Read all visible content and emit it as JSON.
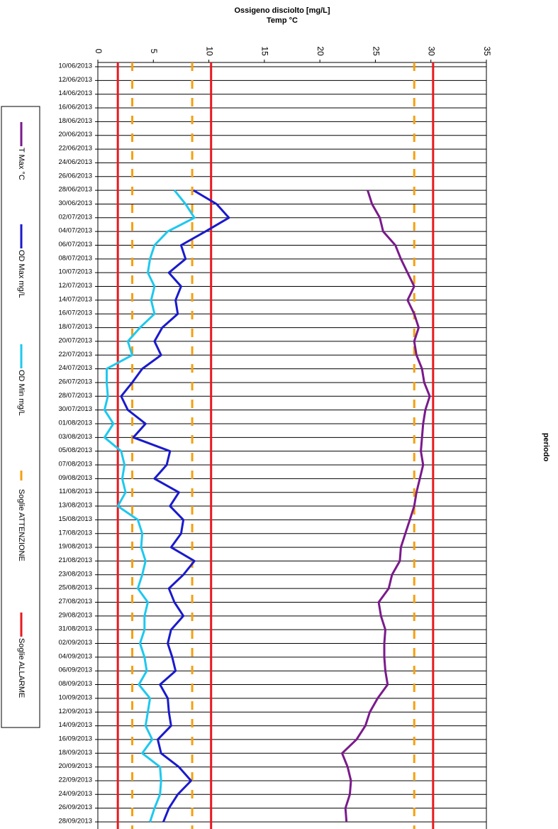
{
  "chart_data": {
    "type": "line",
    "orientation": "horizontal",
    "title": "Ossigeno disciolto [mg/L]",
    "subtitle": "Temp °C",
    "y_label": "periodo",
    "categories": [
      "10/06/2013",
      "12/06/2013",
      "14/06/2013",
      "16/06/2013",
      "18/06/2013",
      "20/06/2013",
      "22/06/2013",
      "24/06/2013",
      "26/06/2013",
      "28/06/2013",
      "30/06/2013",
      "02/07/2013",
      "04/07/2013",
      "06/07/2013",
      "08/07/2013",
      "10/07/2013",
      "12/07/2013",
      "14/07/2013",
      "16/07/2013",
      "18/07/2013",
      "20/07/2013",
      "22/07/2013",
      "24/07/2013",
      "26/07/2013",
      "28/07/2013",
      "30/07/2013",
      "01/08/2013",
      "03/08/2013",
      "05/08/2013",
      "07/08/2013",
      "09/08/2013",
      "11/08/2013",
      "13/08/2013",
      "15/08/2013",
      "17/08/2013",
      "19/08/2013",
      "21/08/2013",
      "23/08/2013",
      "25/08/2013",
      "27/08/2013",
      "29/08/2013",
      "31/08/2013",
      "02/09/2013",
      "04/09/2013",
      "06/09/2013",
      "08/09/2013",
      "10/09/2013",
      "12/09/2013",
      "14/09/2013",
      "16/09/2013",
      "18/09/2013",
      "20/09/2013",
      "22/09/2013",
      "24/09/2013",
      "26/09/2013",
      "28/09/2013"
    ],
    "series": [
      {
        "name": "T Max °C",
        "color": "#7b1a8c",
        "values": [
          null,
          null,
          null,
          null,
          null,
          null,
          null,
          null,
          null,
          24.3,
          24.7,
          25.4,
          25.7,
          26.8,
          27.3,
          27.9,
          28.5,
          27.9,
          28.5,
          28.9,
          28.5,
          28.7,
          29.2,
          29.4,
          29.9,
          29.5,
          29.3,
          29.2,
          29.1,
          29.3,
          29.0,
          28.7,
          28.5,
          28.1,
          27.7,
          27.3,
          27.2,
          26.5,
          26.2,
          25.3,
          25.5,
          25.9,
          25.8,
          25.8,
          25.9,
          26.1,
          25.2,
          24.5,
          24.1,
          23.3,
          22.0,
          22.5,
          22.8,
          22.7,
          22.3,
          22.4
        ]
      },
      {
        "name": "OD Max mg/L",
        "color": "#1a1acd",
        "values": [
          null,
          null,
          null,
          null,
          null,
          null,
          null,
          null,
          null,
          8.6,
          10.7,
          11.8,
          9.7,
          7.5,
          7.9,
          6.4,
          7.5,
          7.0,
          7.2,
          5.8,
          5.1,
          5.7,
          4.0,
          3.1,
          2.1,
          2.7,
          4.3,
          3.2,
          6.5,
          6.2,
          5.1,
          7.3,
          6.5,
          7.7,
          7.5,
          6.6,
          8.7,
          7.7,
          6.4,
          6.9,
          7.7,
          6.6,
          6.3,
          6.7,
          7.0,
          5.6,
          6.3,
          6.4,
          6.6,
          5.4,
          5.7,
          7.3,
          8.4,
          7.2,
          6.4,
          5.9
        ]
      },
      {
        "name": "OD  Min mg/L",
        "color": "#1ec8ee",
        "values": [
          null,
          null,
          null,
          null,
          null,
          null,
          null,
          null,
          null,
          6.9,
          7.9,
          8.7,
          6.3,
          5.1,
          4.7,
          4.5,
          5.1,
          4.8,
          5.1,
          3.8,
          2.7,
          3.1,
          0.8,
          0.8,
          0.9,
          0.6,
          1.4,
          0.6,
          2.1,
          2.4,
          2.2,
          2.5,
          1.8,
          3.6,
          4.0,
          3.9,
          4.3,
          4.0,
          3.6,
          4.5,
          4.2,
          4.2,
          3.8,
          4.2,
          4.4,
          3.7,
          4.7,
          4.5,
          4.3,
          4.9,
          4.0,
          5.6,
          5.7,
          5.6,
          5.1,
          4.7
        ]
      }
    ],
    "thresholds": [
      {
        "name": "Soglie ATTENZIONE",
        "color": "#f5a00f",
        "dashed": true,
        "values": [
          3.1,
          8.5,
          28.5
        ]
      },
      {
        "name": "Soglie ALLARME",
        "color": "#e8191e",
        "dashed": false,
        "values": [
          1.8,
          10.2,
          30.2
        ]
      }
    ],
    "xlim": [
      0,
      35
    ],
    "xticks": [
      0,
      5,
      10,
      15,
      20,
      25,
      30,
      35
    ]
  }
}
